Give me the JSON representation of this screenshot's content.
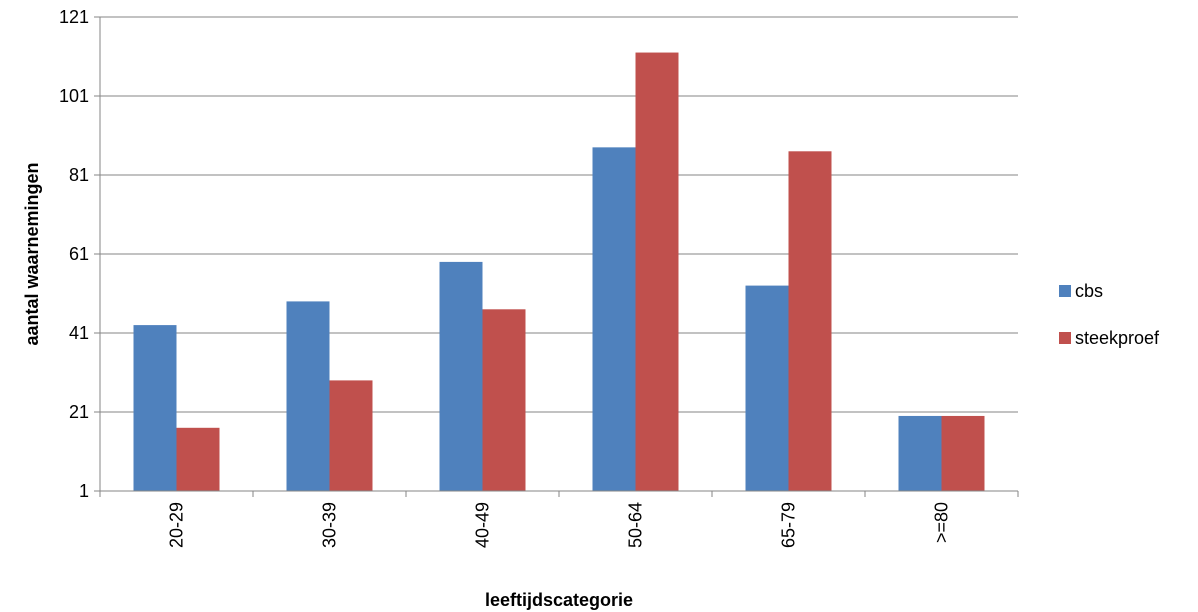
{
  "chart_data": {
    "type": "bar",
    "title": "",
    "xlabel": "leeftijdscategorie",
    "ylabel": "aantal waarnemingen",
    "categories": [
      "20-29",
      "30-39",
      "40-49",
      "50-64",
      "65-79",
      ">=80"
    ],
    "series": [
      {
        "name": "cbs",
        "color": "#4f81bd",
        "values": [
          43,
          49,
          59,
          88,
          53,
          20
        ]
      },
      {
        "name": "steekproef",
        "color": "#c0504d",
        "values": [
          17,
          29,
          47,
          112,
          87,
          20
        ]
      }
    ],
    "ylim": [
      1,
      121
    ],
    "yticks": [
      1,
      21,
      41,
      61,
      81,
      101,
      121
    ],
    "ytick_labels": [
      "1",
      "21",
      "41",
      "61",
      "81",
      "101",
      "121"
    ],
    "grid": true,
    "legend_position": "right",
    "colors": {
      "grid": "#868686",
      "axis": "#868686"
    }
  }
}
